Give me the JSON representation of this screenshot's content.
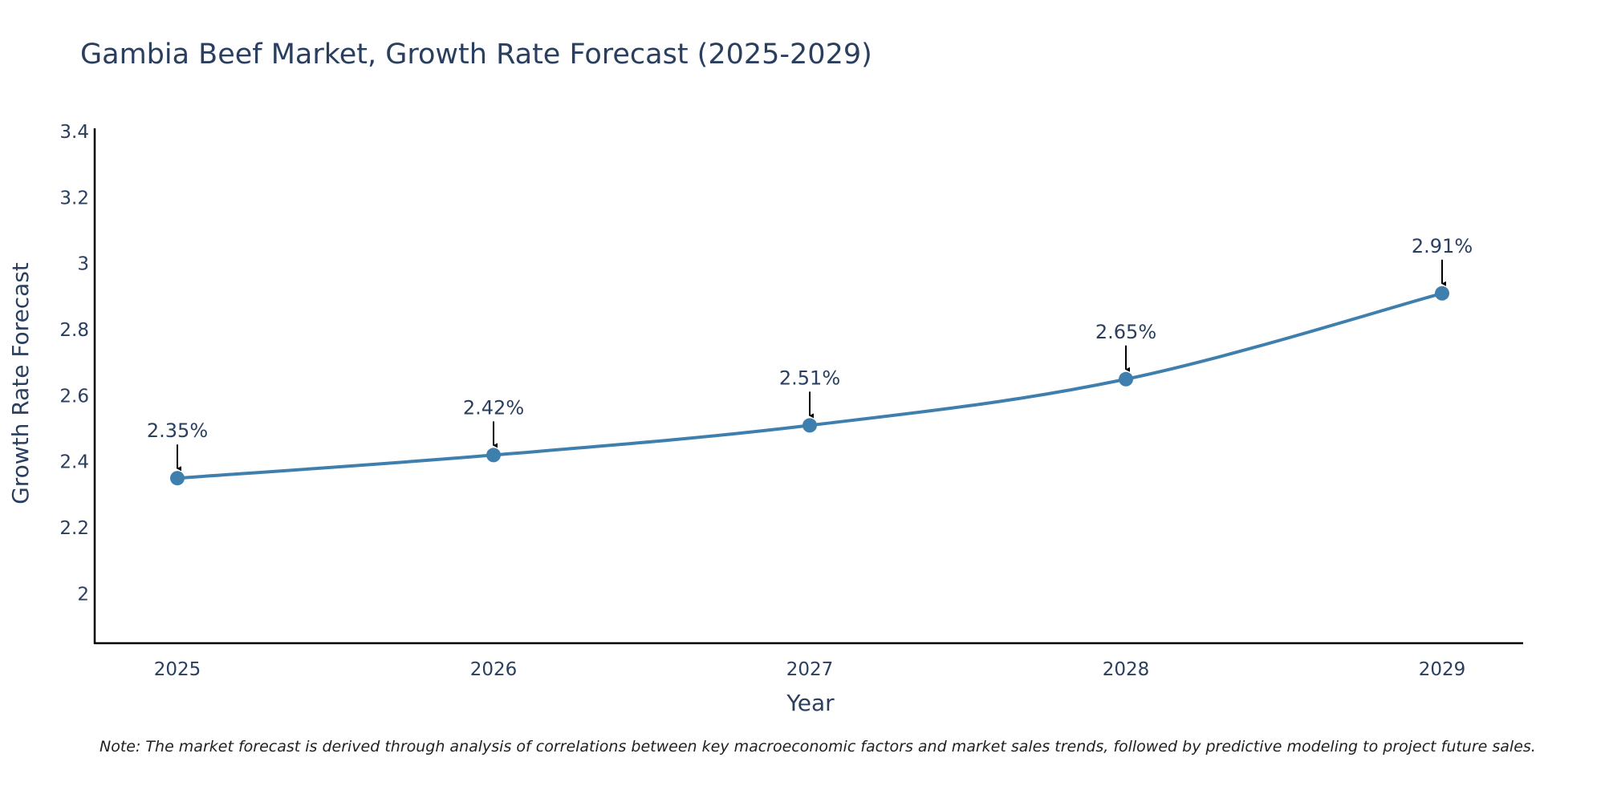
{
  "chart_data": {
    "type": "line",
    "title": "Gambia Beef Market, Growth Rate Forecast (2025-2029)",
    "xlabel": "Year",
    "ylabel": "Growth Rate Forecast",
    "categories": [
      "2025",
      "2026",
      "2027",
      "2028",
      "2029"
    ],
    "series": [
      {
        "name": "Growth Rate Forecast",
        "values": [
          2.35,
          2.42,
          2.51,
          2.65,
          2.91
        ],
        "labels": [
          "2.35%",
          "2.42%",
          "2.51%",
          "2.65%",
          "2.91%"
        ],
        "color": "#3f7fad"
      }
    ],
    "yticks": [
      2,
      2.2,
      2.4,
      2.6,
      2.8,
      3,
      3.2,
      3.4
    ],
    "ytick_labels": [
      "2",
      "2.2",
      "2.4",
      "2.6",
      "2.8",
      "3",
      "3.2",
      "3.4"
    ],
    "ylim": [
      1.85,
      3.41
    ],
    "grid": false,
    "legend": "none"
  },
  "note": "Note: The market forecast is derived through analysis of correlations between key macroeconomic factors and market sales trends, followed by predictive modeling to project future sales.",
  "colors": {
    "line": "#3f7fad",
    "axis": "#000000",
    "text": "#2a3f5f",
    "arrow": "#000000"
  }
}
